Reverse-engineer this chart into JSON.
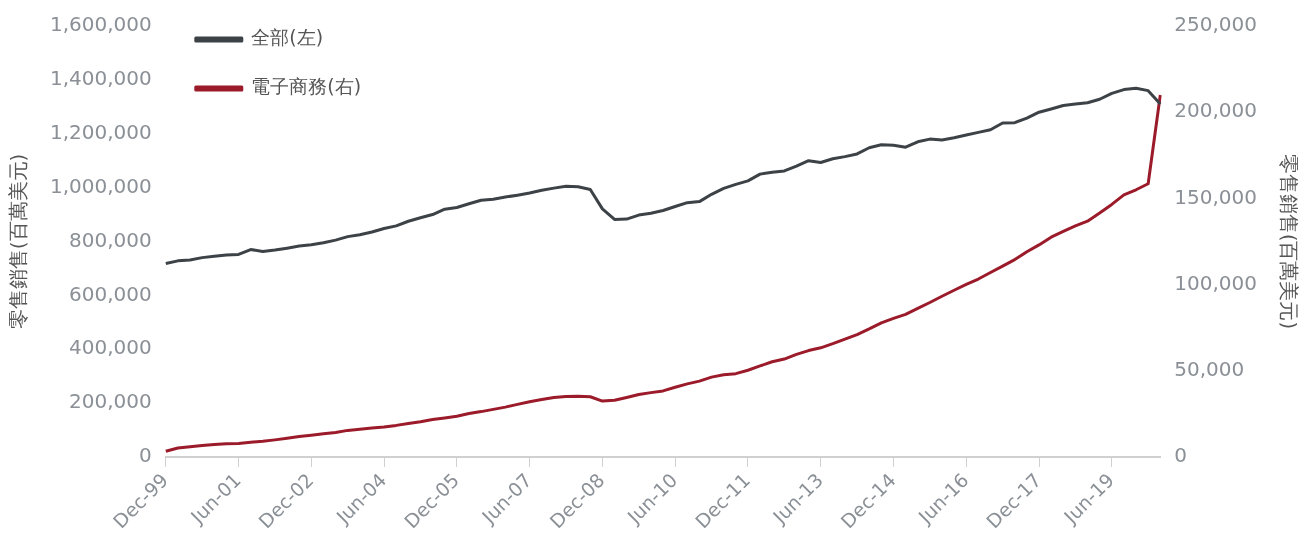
{
  "chart_data": {
    "type": "line",
    "ylabel": "零售銷售(百萬美元)",
    "y2label": "零售銷售(百萬美元)",
    "categories": [
      "Dec-99",
      null,
      null,
      null,
      null,
      null,
      "Jun-01",
      null,
      null,
      null,
      null,
      null,
      "Dec-02",
      null,
      null,
      null,
      null,
      null,
      "Jun-04",
      null,
      null,
      null,
      null,
      null,
      "Dec-05",
      null,
      null,
      null,
      null,
      null,
      "Jun-07",
      null,
      null,
      null,
      null,
      null,
      "Dec-08",
      null,
      null,
      null,
      null,
      null,
      "Jun-10",
      null,
      null,
      null,
      null,
      null,
      "Dec-11",
      null,
      null,
      null,
      null,
      null,
      "Jun-13",
      null,
      null,
      null,
      null,
      null,
      "Dec-14",
      null,
      null,
      null,
      null,
      null,
      "Jun-16",
      null,
      null,
      null,
      null,
      null,
      "Dec-17",
      null,
      null,
      null,
      null,
      null,
      "Jun-19",
      null,
      null,
      null,
      null
    ],
    "series": [
      {
        "name": "全部(左)",
        "color": "#3d4247",
        "axis": "y",
        "values": [
          718000,
          728000,
          731000,
          740000,
          745000,
          750000,
          752000,
          770000,
          763000,
          768000,
          775000,
          783000,
          788000,
          795000,
          805000,
          818000,
          825000,
          835000,
          848000,
          858000,
          875000,
          888000,
          900000,
          920000,
          926000,
          940000,
          953000,
          957000,
          965000,
          972000,
          980000,
          990000,
          998000,
          1005000,
          1003000,
          993000,
          921000,
          882000,
          883000,
          898000,
          905000,
          915000,
          930000,
          944000,
          948000,
          975000,
          997000,
          1012000,
          1025000,
          1050000,
          1057000,
          1062000,
          1080000,
          1100000,
          1093000,
          1107000,
          1115000,
          1125000,
          1148000,
          1159000,
          1157000,
          1150000,
          1170000,
          1180000,
          1177000,
          1185000,
          1195000,
          1205000,
          1215000,
          1240000,
          1241000,
          1258000,
          1280000,
          1292000,
          1305000,
          1310000,
          1315000,
          1328000,
          1350000,
          1364000,
          1369000,
          1360000,
          1310000
        ]
      },
      {
        "name": "電子商務(右)",
        "color": "#9b1b2a",
        "axis": "y2",
        "values": [
          3300,
          5200,
          5900,
          6600,
          7200,
          7700,
          7800,
          8500,
          9100,
          9900,
          10800,
          11800,
          12600,
          13400,
          14200,
          15400,
          16100,
          16800,
          17400,
          18300,
          19400,
          20400,
          21700,
          22600,
          23600,
          25200,
          26300,
          27600,
          28900,
          30500,
          32000,
          33300,
          34500,
          35000,
          35200,
          34900,
          32400,
          32900,
          34500,
          36200,
          37300,
          38300,
          40400,
          42400,
          44000,
          46300,
          47700,
          48300,
          50300,
          52800,
          55200,
          56800,
          59500,
          61700,
          63300,
          65700,
          68400,
          71000,
          74300,
          77800,
          80400,
          82700,
          86200,
          89600,
          93200,
          96700,
          100100,
          103200,
          107000,
          110700,
          114500,
          119000,
          123000,
          127500,
          130800,
          134000,
          136800,
          141500,
          146500,
          152000,
          155000,
          158500,
          210000
        ]
      }
    ],
    "ylim": [
      0,
      1600000
    ],
    "yticks": [
      0,
      {
        "value": 200000,
        "label": "200,000"
      },
      {
        "value": 400000,
        "label": "400,000"
      },
      {
        "value": 600000,
        "label": "600,000"
      },
      {
        "value": 800000,
        "label": "800,000"
      },
      {
        "value": 1000000,
        "label": "1,000,000"
      },
      {
        "value": 1200000,
        "label": "1,200,000"
      },
      {
        "value": 1400000,
        "label": "1,400,000"
      },
      {
        "value": 1600000,
        "label": "1,600,000"
      }
    ],
    "y2lim": [
      0,
      250000
    ],
    "y2ticks": [
      0,
      {
        "value": 50000,
        "label": "50,000"
      },
      {
        "value": 100000,
        "label": "100,000"
      },
      {
        "value": 150000,
        "label": "150,000"
      },
      {
        "value": 200000,
        "label": "200,000"
      },
      {
        "value": 250000,
        "label": "250,000"
      }
    ],
    "grid": false,
    "legend": "top left",
    "marker": "none",
    "line_style": "solid"
  }
}
